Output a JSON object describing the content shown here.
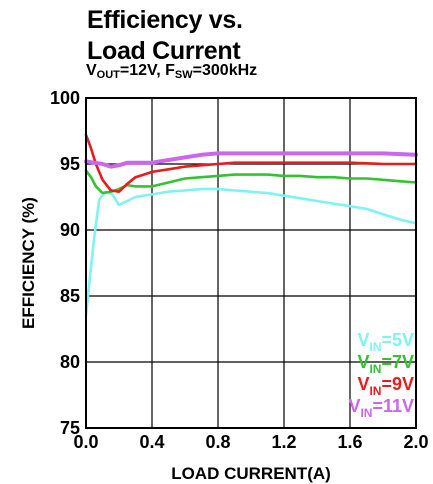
{
  "chart_data": {
    "type": "line",
    "title_line1": "Efficiency vs.",
    "title_line2": "Load Current",
    "subtitle": {
      "v": "V",
      "v_sub": "OUT",
      "v_rest": "=12V, F",
      "f_sub": "SW",
      "f_rest": "=300kHz"
    },
    "xlabel": "LOAD CURRENT(A)",
    "ylabel": "EFFICIENCY (%)",
    "xlim": [
      0,
      2.0
    ],
    "ylim": [
      75,
      100
    ],
    "xticks": [
      0.0,
      0.4,
      0.8,
      1.2,
      1.6,
      2.0
    ],
    "xtick_labels": [
      "0.0",
      "0.4",
      "0.8",
      "1.2",
      "1.6",
      "2.0"
    ],
    "yticks": [
      75,
      80,
      85,
      90,
      95,
      100
    ],
    "ytick_labels": [
      "75",
      "80",
      "85",
      "90",
      "95",
      "100"
    ],
    "grid": true,
    "legend_position": "bottom-right",
    "series": [
      {
        "name": "VIN=5V",
        "label_main": "V",
        "label_sub": "IN",
        "label_rest": "=5V",
        "color": "#7ff3f3",
        "x": [
          0.0,
          0.02,
          0.05,
          0.08,
          0.12,
          0.16,
          0.2,
          0.25,
          0.3,
          0.4,
          0.5,
          0.6,
          0.7,
          0.8,
          0.9,
          1.0,
          1.1,
          1.2,
          1.3,
          1.4,
          1.5,
          1.6,
          1.7,
          1.8,
          1.9,
          2.0
        ],
        "y": [
          83.5,
          86,
          89.5,
          92.3,
          92.9,
          92.7,
          91.9,
          92.2,
          92.5,
          92.7,
          92.9,
          93.0,
          93.1,
          93.1,
          93.0,
          92.9,
          92.8,
          92.6,
          92.4,
          92.2,
          92.0,
          91.8,
          91.6,
          91.2,
          90.8,
          90.5
        ]
      },
      {
        "name": "VIN=7V",
        "label_main": "V",
        "label_sub": "IN",
        "label_rest": "=7V",
        "color": "#33c233",
        "x": [
          0.0,
          0.03,
          0.06,
          0.1,
          0.15,
          0.2,
          0.25,
          0.3,
          0.4,
          0.5,
          0.6,
          0.7,
          0.8,
          0.9,
          1.0,
          1.1,
          1.2,
          1.3,
          1.4,
          1.5,
          1.6,
          1.7,
          1.8,
          1.9,
          2.0
        ],
        "y": [
          94.5,
          94.0,
          93.3,
          92.8,
          92.9,
          93.1,
          93.4,
          93.3,
          93.3,
          93.6,
          93.9,
          94.0,
          94.1,
          94.2,
          94.2,
          94.2,
          94.1,
          94.1,
          94.0,
          94.0,
          93.9,
          93.9,
          93.8,
          93.7,
          93.6
        ]
      },
      {
        "name": "VIN=9V",
        "label_main": "V",
        "label_sub": "IN",
        "label_rest": "=9V",
        "color": "#e81c1c",
        "x": [
          0.0,
          0.03,
          0.06,
          0.1,
          0.15,
          0.2,
          0.25,
          0.3,
          0.35,
          0.4,
          0.5,
          0.6,
          0.7,
          0.8,
          0.9,
          1.0,
          1.2,
          1.4,
          1.6,
          1.8,
          2.0
        ],
        "y": [
          97.2,
          96.2,
          95.0,
          93.8,
          93.0,
          92.9,
          93.5,
          94.0,
          94.2,
          94.4,
          94.6,
          94.8,
          94.9,
          95.0,
          95.1,
          95.1,
          95.1,
          95.1,
          95.1,
          95.0,
          95.0
        ]
      },
      {
        "name": "VIN=11V",
        "label_main": "V",
        "label_sub": "IN",
        "label_rest": "=11V",
        "color": "#cc66ee",
        "x": [
          0.0,
          0.05,
          0.1,
          0.15,
          0.2,
          0.25,
          0.3,
          0.4,
          0.5,
          0.6,
          0.7,
          0.8,
          0.9,
          1.0,
          1.2,
          1.4,
          1.6,
          1.8,
          2.0
        ],
        "y": [
          95.2,
          95.1,
          95.0,
          94.8,
          94.9,
          95.1,
          95.1,
          95.1,
          95.3,
          95.5,
          95.7,
          95.8,
          95.8,
          95.8,
          95.8,
          95.8,
          95.8,
          95.8,
          95.7
        ]
      }
    ]
  }
}
